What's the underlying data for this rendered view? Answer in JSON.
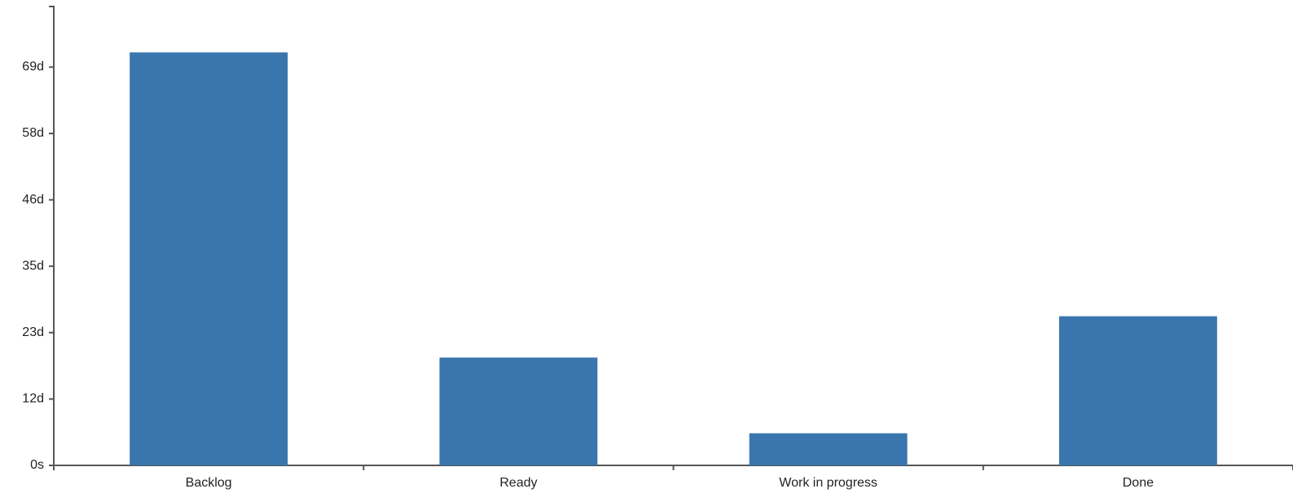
{
  "chart_data": {
    "type": "bar",
    "title": "",
    "xlabel": "",
    "ylabel": "",
    "categories": [
      "Backlog",
      "Ready",
      "Work in progress",
      "Done"
    ],
    "values": [
      72,
      18.8,
      5.6,
      26
    ],
    "value_unit": "days",
    "ylim": [
      0,
      80
    ],
    "yticks": [
      {
        "value": 0,
        "label": "0s"
      },
      {
        "value": 11.57,
        "label": "12d"
      },
      {
        "value": 23.15,
        "label": "23d"
      },
      {
        "value": 34.72,
        "label": "35d"
      },
      {
        "value": 46.3,
        "label": "46d"
      },
      {
        "value": 57.87,
        "label": "58d"
      },
      {
        "value": 69.44,
        "label": "69d"
      }
    ],
    "grid": false,
    "bar_color": "#3a76ad"
  }
}
